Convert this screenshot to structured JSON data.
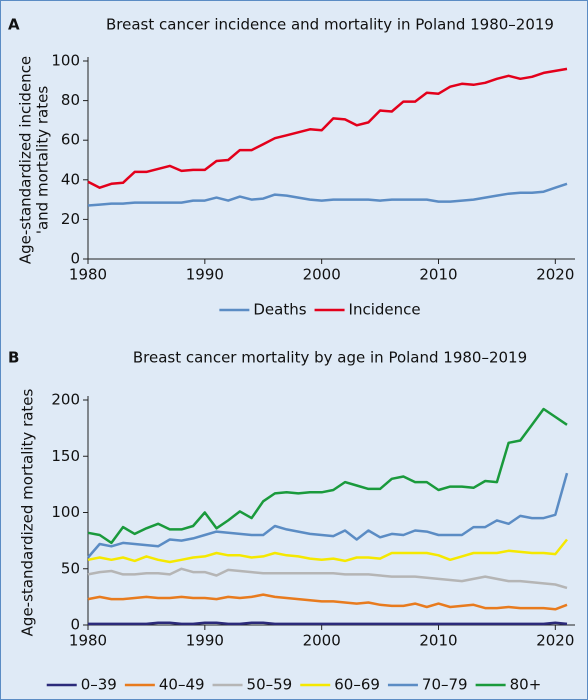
{
  "chart_data": [
    {
      "type": "line",
      "panel_label": "A",
      "title": "Breast cancer incidence and mortality in Poland 1980–2019",
      "ylabel": [
        "Age-standardized incidence",
        "'and mortality rates"
      ],
      "x": [
        1980,
        1981,
        1982,
        1983,
        1984,
        1985,
        1986,
        1987,
        1988,
        1989,
        1990,
        1991,
        1992,
        1993,
        1994,
        1995,
        1996,
        1997,
        1998,
        1999,
        2000,
        2001,
        2002,
        2003,
        2004,
        2005,
        2006,
        2007,
        2008,
        2009,
        2010,
        2011,
        2012,
        2013,
        2014,
        2015,
        2016,
        2017,
        2018,
        2019,
        2020,
        2021
      ],
      "xlim": [
        1980,
        2021
      ],
      "xticks": [
        1980,
        1990,
        2000,
        2010,
        2020
      ],
      "ylim": [
        0,
        100
      ],
      "yticks": [
        0,
        20,
        40,
        60,
        80,
        100
      ],
      "series": [
        {
          "name": "Deaths",
          "color": "#5b8cc4",
          "values": [
            27,
            27.5,
            28,
            28,
            28.5,
            28.5,
            28.5,
            28.5,
            28.5,
            29.5,
            29.5,
            31,
            29.5,
            31.5,
            30,
            30.5,
            32.5,
            32,
            31,
            30,
            29.5,
            30,
            30,
            30,
            30,
            29.5,
            30,
            30,
            30,
            30,
            29,
            29,
            29.5,
            30,
            31,
            32,
            33,
            33.5,
            33.5,
            34,
            36,
            38
          ]
        },
        {
          "name": "Incidence",
          "color": "#e3001b",
          "values": [
            39,
            36,
            38,
            38.5,
            44,
            44,
            45.5,
            47,
            44.5,
            45,
            45,
            49.5,
            50,
            55,
            55,
            58,
            61,
            62.5,
            64,
            65.5,
            65,
            71,
            70.5,
            67.5,
            69,
            75,
            74.5,
            79.5,
            79.5,
            84,
            83.5,
            87,
            88.5,
            88,
            89,
            91,
            92.5,
            91,
            92,
            94,
            95,
            96
          ]
        }
      ]
    },
    {
      "type": "line",
      "panel_label": "B",
      "title": "Breast cancer mortality by age in Poland 1980–2019",
      "ylabel": "Age-standardized mortality rates",
      "x": [
        1980,
        1981,
        1982,
        1983,
        1984,
        1985,
        1986,
        1987,
        1988,
        1989,
        1990,
        1991,
        1992,
        1993,
        1994,
        1995,
        1996,
        1997,
        1998,
        1999,
        2000,
        2001,
        2002,
        2003,
        2004,
        2005,
        2006,
        2007,
        2008,
        2009,
        2010,
        2011,
        2012,
        2013,
        2014,
        2015,
        2016,
        2017,
        2018,
        2019,
        2020,
        2021
      ],
      "xlim": [
        1980,
        2021
      ],
      "xticks": [
        1980,
        1990,
        2000,
        2010,
        2020
      ],
      "ylim": [
        0,
        200
      ],
      "yticks": [
        0,
        50,
        100,
        150,
        200
      ],
      "series": [
        {
          "name": "0–39",
          "color": "#2b2a7a",
          "values": [
            1,
            1,
            1,
            1,
            1,
            1,
            2,
            2,
            1,
            1,
            2,
            2,
            1,
            1,
            2,
            2,
            1,
            1,
            1,
            1,
            1,
            1,
            1,
            1,
            1,
            1,
            1,
            1,
            1,
            1,
            1,
            1,
            1,
            1,
            1,
            1,
            1,
            1,
            1,
            1,
            2,
            1
          ]
        },
        {
          "name": "40–49",
          "color": "#e87b1e",
          "values": [
            23,
            25,
            23,
            23,
            24,
            25,
            24,
            24,
            25,
            24,
            24,
            23,
            25,
            24,
            25,
            27,
            25,
            24,
            23,
            22,
            21,
            21,
            20,
            19,
            20,
            18,
            17,
            17,
            19,
            16,
            19,
            16,
            17,
            18,
            15,
            15,
            16,
            15,
            15,
            15,
            14,
            18
          ]
        },
        {
          "name": "50–59",
          "color": "#b5b5b5",
          "values": [
            45,
            47,
            48,
            45,
            45,
            46,
            46,
            45,
            50,
            47,
            47,
            44,
            49,
            48,
            47,
            46,
            46,
            46,
            46,
            46,
            46,
            46,
            45,
            45,
            45,
            44,
            43,
            43,
            43,
            42,
            41,
            40,
            39,
            41,
            43,
            41,
            39,
            39,
            38,
            37,
            36,
            33
          ]
        },
        {
          "name": "60–69",
          "color": "#f5e800",
          "values": [
            58,
            60,
            58,
            60,
            57,
            61,
            58,
            56,
            58,
            60,
            61,
            64,
            62,
            62,
            60,
            61,
            64,
            62,
            61,
            59,
            58,
            59,
            57,
            60,
            60,
            59,
            64,
            64,
            64,
            64,
            62,
            58,
            61,
            64,
            64,
            64,
            66,
            65,
            64,
            64,
            63,
            76
          ]
        },
        {
          "name": "70–79",
          "color": "#5b8cc4",
          "values": [
            60,
            72,
            70,
            73,
            72,
            71,
            70,
            76,
            75,
            77,
            80,
            83,
            82,
            81,
            80,
            80,
            88,
            85,
            83,
            81,
            80,
            79,
            84,
            76,
            84,
            78,
            81,
            80,
            84,
            83,
            80,
            80,
            80,
            87,
            87,
            93,
            90,
            97,
            95,
            95,
            98,
            135
          ]
        },
        {
          "name": "80+",
          "color": "#1a9a3c",
          "values": [
            82,
            80,
            73,
            87,
            81,
            86,
            90,
            85,
            85,
            88,
            100,
            86,
            93,
            101,
            95,
            110,
            117,
            118,
            117,
            118,
            118,
            120,
            127,
            124,
            121,
            121,
            130,
            132,
            127,
            127,
            120,
            123,
            123,
            122,
            128,
            127,
            162,
            164,
            178,
            192,
            185,
            178
          ]
        }
      ]
    }
  ]
}
